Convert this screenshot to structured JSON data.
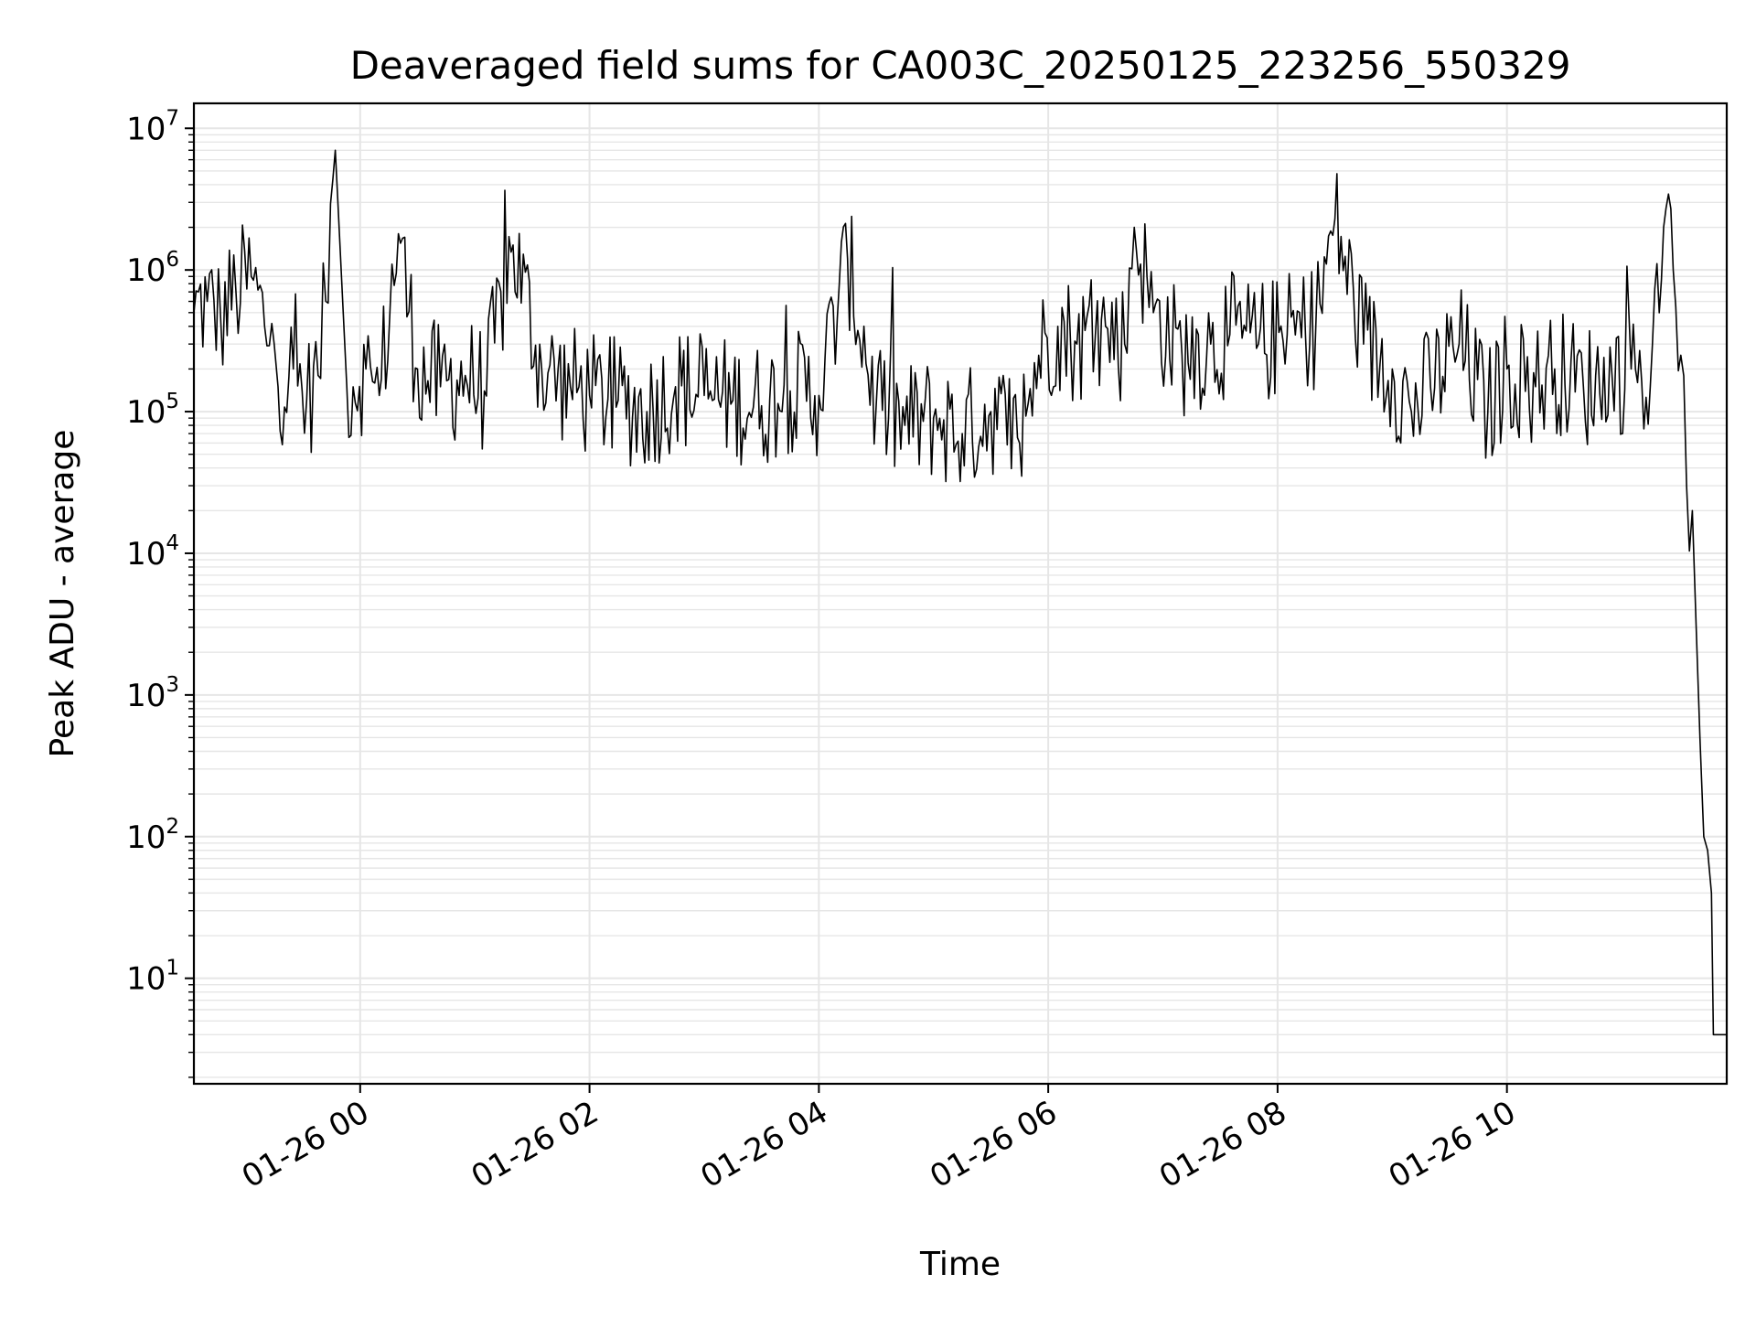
{
  "chart_data": {
    "type": "line",
    "title": "Deaveraged field sums for CA003C_20250125_223256_550329",
    "xlabel": "Time",
    "ylabel": "Peak ADU - average",
    "yscale": "log",
    "ylim": [
      1.8,
      15000000
    ],
    "xlim": [
      "2025-01-25T22:33:00",
      "2025-01-26T11:55:00"
    ],
    "grid": true,
    "line_color": "#000000",
    "grid_color": "#e6e6e6",
    "x_ticks": [
      {
        "value": "2025-01-26T00:00:00",
        "label": "01-26 00"
      },
      {
        "value": "2025-01-26T02:00:00",
        "label": "01-26 02"
      },
      {
        "value": "2025-01-26T04:00:00",
        "label": "01-26 04"
      },
      {
        "value": "2025-01-26T06:00:00",
        "label": "01-26 06"
      },
      {
        "value": "2025-01-26T08:00:00",
        "label": "01-26 08"
      },
      {
        "value": "2025-01-26T10:00:00",
        "label": "01-26 10"
      }
    ],
    "y_ticks": [
      {
        "value": 10,
        "base": "10",
        "exp": "1"
      },
      {
        "value": 100,
        "base": "10",
        "exp": "2"
      },
      {
        "value": 1000,
        "base": "10",
        "exp": "3"
      },
      {
        "value": 10000,
        "base": "10",
        "exp": "4"
      },
      {
        "value": 100000,
        "base": "10",
        "exp": "5"
      },
      {
        "value": 1000000,
        "base": "10",
        "exp": "6"
      },
      {
        "value": 10000000,
        "base": "10",
        "exp": "7"
      }
    ],
    "series": [
      {
        "x": [
          "2025-01-25T22:33:00",
          "2025-01-25T22:40:00",
          "2025-01-25T22:47:00",
          "2025-01-25T22:55:00",
          "2025-01-25T23:03:00",
          "2025-01-25T23:10:00",
          "2025-01-25T23:15:00",
          "2025-01-25T23:17:00",
          "2025-01-25T23:25:00",
          "2025-01-25T23:32:00",
          "2025-01-25T23:38:00",
          "2025-01-25T23:42:00",
          "2025-01-25T23:47:00",
          "2025-01-25T23:53:00",
          "2025-01-26T00:03:00",
          "2025-01-26T00:10:00",
          "2025-01-26T00:20:00",
          "2025-01-26T00:30:00",
          "2025-01-26T00:42:00",
          "2025-01-26T00:55:00",
          "2025-01-26T01:05:00",
          "2025-01-26T01:20:00",
          "2025-01-26T01:35:00",
          "2025-01-26T01:50:00",
          "2025-01-26T02:00:00",
          "2025-01-26T02:15:00",
          "2025-01-26T02:30:00",
          "2025-01-26T02:45:00",
          "2025-01-26T03:00:00",
          "2025-01-26T03:15:00",
          "2025-01-26T03:30:00",
          "2025-01-26T03:45:00",
          "2025-01-26T04:00:00",
          "2025-01-26T04:15:00",
          "2025-01-26T04:30:00",
          "2025-01-26T04:45:00",
          "2025-01-26T05:00:00",
          "2025-01-26T05:15:00",
          "2025-01-26T05:30:00",
          "2025-01-26T05:45:00",
          "2025-01-26T05:55:00",
          "2025-01-26T06:05:00",
          "2025-01-26T06:15:00",
          "2025-01-26T06:30:00",
          "2025-01-26T06:40:00",
          "2025-01-26T06:45:00",
          "2025-01-26T06:55:00",
          "2025-01-26T07:10:00",
          "2025-01-26T07:25:00",
          "2025-01-26T07:35:00",
          "2025-01-26T07:50:00",
          "2025-01-26T08:05:00",
          "2025-01-26T08:20:00",
          "2025-01-26T08:30:00",
          "2025-01-26T08:45:00",
          "2025-01-26T09:00:00",
          "2025-01-26T09:10:00",
          "2025-01-26T09:20:00",
          "2025-01-26T09:35:00",
          "2025-01-26T09:50:00",
          "2025-01-26T10:00:00",
          "2025-01-26T10:15:00",
          "2025-01-26T10:25:00",
          "2025-01-26T10:40:00",
          "2025-01-26T10:55:00",
          "2025-01-26T11:05:00",
          "2025-01-26T11:15:00",
          "2025-01-26T11:22:00",
          "2025-01-26T11:27:00",
          "2025-01-26T11:31:00",
          "2025-01-26T11:34:00",
          "2025-01-26T11:37:00",
          "2025-01-26T11:39:00",
          "2025-01-26T11:41:00",
          "2025-01-26T11:43:00",
          "2025-01-26T11:45:00",
          "2025-01-26T11:47:00",
          "2025-01-26T11:48:00",
          "2025-01-26T11:50:00",
          "2025-01-26T11:52:00",
          "2025-01-26T11:55:00"
        ],
        "y": [
          500000,
          600000,
          450000,
          700000,
          900000,
          400000,
          300000,
          150000,
          200000,
          120000,
          180000,
          600000,
          7000000,
          150000,
          200000,
          130000,
          1800000,
          200000,
          150000,
          180000,
          140000,
          1500000,
          200000,
          150000,
          130000,
          120000,
          100000,
          150000,
          130000,
          120000,
          110000,
          140000,
          130000,
          1200000,
          110000,
          80000,
          90000,
          70000,
          100000,
          60000,
          250000,
          400000,
          300000,
          400000,
          300000,
          2000000,
          500000,
          250000,
          300000,
          350000,
          300000,
          350000,
          400000,
          2300000,
          300000,
          200000,
          100000,
          150000,
          300000,
          100000,
          200000,
          150000,
          200000,
          150000,
          180000,
          200000,
          150000,
          2000000,
          1000000,
          250000,
          30000,
          20000,
          3000,
          500,
          100,
          80,
          40,
          4,
          4,
          4,
          4
        ]
      }
    ]
  }
}
